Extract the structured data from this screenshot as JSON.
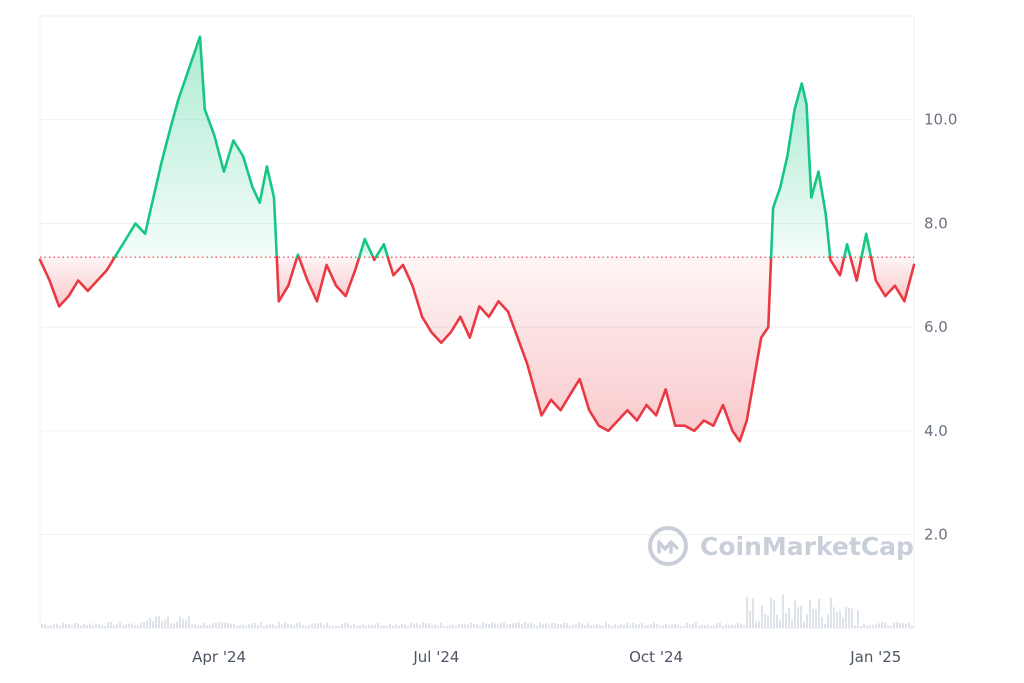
{
  "watermark": {
    "text": "CoinMarketCap",
    "icon": "coinmarketcap-logo-icon"
  },
  "colors": {
    "up": "#16c784",
    "down": "#ea3943",
    "grid": "#eef0f3",
    "baseline": "#ea3943",
    "volume": "#dfe3ea"
  },
  "chart_data": {
    "type": "area",
    "title": "",
    "xlabel": "",
    "ylabel": "",
    "baseline_value": 7.35,
    "ylim": [
      0.2,
      12.0
    ],
    "y_ticks": [
      {
        "value": 2.0,
        "label": "2.0"
      },
      {
        "value": 4.0,
        "label": "4.0"
      },
      {
        "value": 6.0,
        "label": "6.0"
      },
      {
        "value": 8.0,
        "label": "8.0"
      },
      {
        "value": 10.0,
        "label": "10.0"
      }
    ],
    "x_range": [
      "2024-01-17",
      "2025-01-17"
    ],
    "x_ticks": [
      {
        "date": "2024-04-01",
        "label": "Apr '24"
      },
      {
        "date": "2024-07-01",
        "label": "Jul '24"
      },
      {
        "date": "2024-10-01",
        "label": "Oct '24"
      },
      {
        "date": "2025-01-01",
        "label": "Jan '25"
      }
    ],
    "grid": true,
    "series": [
      {
        "points": [
          [
            "2024-01-17",
            7.3
          ],
          [
            "2024-01-21",
            6.9
          ],
          [
            "2024-01-25",
            6.4
          ],
          [
            "2024-01-29",
            6.6
          ],
          [
            "2024-02-02",
            6.9
          ],
          [
            "2024-02-06",
            6.7
          ],
          [
            "2024-02-10",
            6.9
          ],
          [
            "2024-02-14",
            7.1
          ],
          [
            "2024-02-18",
            7.4
          ],
          [
            "2024-02-22",
            7.7
          ],
          [
            "2024-02-26",
            8.0
          ],
          [
            "2024-03-01",
            7.8
          ],
          [
            "2024-03-04",
            8.4
          ],
          [
            "2024-03-08",
            9.2
          ],
          [
            "2024-03-12",
            9.9
          ],
          [
            "2024-03-15",
            10.4
          ],
          [
            "2024-03-18",
            10.8
          ],
          [
            "2024-03-21",
            11.2
          ],
          [
            "2024-03-24",
            11.6
          ],
          [
            "2024-03-26",
            10.2
          ],
          [
            "2024-03-30",
            9.7
          ],
          [
            "2024-04-03",
            9.0
          ],
          [
            "2024-04-07",
            9.6
          ],
          [
            "2024-04-11",
            9.3
          ],
          [
            "2024-04-15",
            8.7
          ],
          [
            "2024-04-18",
            8.4
          ],
          [
            "2024-04-21",
            9.1
          ],
          [
            "2024-04-24",
            8.5
          ],
          [
            "2024-04-26",
            6.5
          ],
          [
            "2024-04-30",
            6.8
          ],
          [
            "2024-05-04",
            7.4
          ],
          [
            "2024-05-08",
            6.9
          ],
          [
            "2024-05-12",
            6.5
          ],
          [
            "2024-05-16",
            7.2
          ],
          [
            "2024-05-20",
            6.8
          ],
          [
            "2024-05-24",
            6.6
          ],
          [
            "2024-05-28",
            7.1
          ],
          [
            "2024-06-01",
            7.7
          ],
          [
            "2024-06-05",
            7.3
          ],
          [
            "2024-06-09",
            7.6
          ],
          [
            "2024-06-13",
            7.0
          ],
          [
            "2024-06-17",
            7.2
          ],
          [
            "2024-06-21",
            6.8
          ],
          [
            "2024-06-25",
            6.2
          ],
          [
            "2024-06-29",
            5.9
          ],
          [
            "2024-07-03",
            5.7
          ],
          [
            "2024-07-07",
            5.9
          ],
          [
            "2024-07-11",
            6.2
          ],
          [
            "2024-07-15",
            5.8
          ],
          [
            "2024-07-19",
            6.4
          ],
          [
            "2024-07-23",
            6.2
          ],
          [
            "2024-07-27",
            6.5
          ],
          [
            "2024-07-31",
            6.3
          ],
          [
            "2024-08-04",
            5.8
          ],
          [
            "2024-08-08",
            5.3
          ],
          [
            "2024-08-11",
            4.8
          ],
          [
            "2024-08-14",
            4.3
          ],
          [
            "2024-08-18",
            4.6
          ],
          [
            "2024-08-22",
            4.4
          ],
          [
            "2024-08-26",
            4.7
          ],
          [
            "2024-08-30",
            5.0
          ],
          [
            "2024-09-03",
            4.4
          ],
          [
            "2024-09-07",
            4.1
          ],
          [
            "2024-09-11",
            4.0
          ],
          [
            "2024-09-15",
            4.2
          ],
          [
            "2024-09-19",
            4.4
          ],
          [
            "2024-09-23",
            4.2
          ],
          [
            "2024-09-27",
            4.5
          ],
          [
            "2024-10-01",
            4.3
          ],
          [
            "2024-10-05",
            4.8
          ],
          [
            "2024-10-09",
            4.1
          ],
          [
            "2024-10-13",
            4.1
          ],
          [
            "2024-10-17",
            4.0
          ],
          [
            "2024-10-21",
            4.2
          ],
          [
            "2024-10-25",
            4.1
          ],
          [
            "2024-10-29",
            4.5
          ],
          [
            "2024-11-02",
            4.0
          ],
          [
            "2024-11-05",
            3.8
          ],
          [
            "2024-11-08",
            4.2
          ],
          [
            "2024-11-11",
            5.0
          ],
          [
            "2024-11-14",
            5.8
          ],
          [
            "2024-11-17",
            6.0
          ],
          [
            "2024-11-19",
            8.3
          ],
          [
            "2024-11-22",
            8.7
          ],
          [
            "2024-11-25",
            9.3
          ],
          [
            "2024-11-28",
            10.2
          ],
          [
            "2024-12-01",
            10.7
          ],
          [
            "2024-12-03",
            10.3
          ],
          [
            "2024-12-05",
            8.5
          ],
          [
            "2024-12-08",
            9.0
          ],
          [
            "2024-12-11",
            8.2
          ],
          [
            "2024-12-13",
            7.3
          ],
          [
            "2024-12-17",
            7.0
          ],
          [
            "2024-12-20",
            7.6
          ],
          [
            "2024-12-24",
            6.9
          ],
          [
            "2024-12-28",
            7.8
          ],
          [
            "2025-01-01",
            6.9
          ],
          [
            "2025-01-05",
            6.6
          ],
          [
            "2025-01-09",
            6.8
          ],
          [
            "2025-01-13",
            6.5
          ],
          [
            "2025-01-17",
            7.2
          ]
        ]
      }
    ]
  }
}
